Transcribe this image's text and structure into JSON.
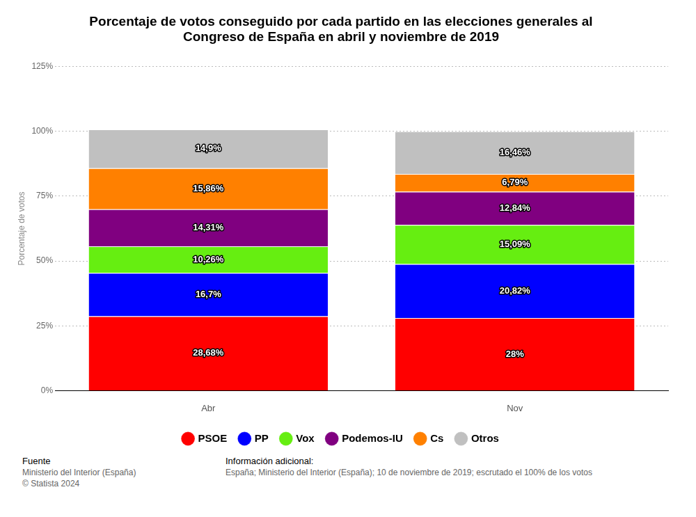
{
  "chart_data": {
    "type": "bar",
    "title": [
      "Porcentaje de votos conseguido por cada partido en las elecciones generales al",
      "Congreso de España en abril y noviembre de 2019"
    ],
    "y_label": "Porcentaje de votos",
    "categories": [
      "Abr",
      "Nov"
    ],
    "stacked": true,
    "data_labels": true,
    "grid": true,
    "legend": "bottom",
    "ylim": [
      0,
      125
    ],
    "yticks": [
      {
        "value": 0,
        "label": "0%"
      },
      {
        "value": 25,
        "label": "25%"
      },
      {
        "value": 50,
        "label": "50%"
      },
      {
        "value": 75,
        "label": "75%"
      },
      {
        "value": 100,
        "label": "100%"
      },
      {
        "value": 125,
        "label": "125%"
      }
    ],
    "series": [
      {
        "name": "PSOE",
        "color": "#ff0000",
        "values": [
          28.68,
          28
        ],
        "value_labels": [
          "28,68%",
          "28%"
        ]
      },
      {
        "name": "PP",
        "color": "#0000ff",
        "values": [
          16.7,
          20.82
        ],
        "value_labels": [
          "16,7%",
          "20,82%"
        ]
      },
      {
        "name": "Vox",
        "color": "#66ee11",
        "values": [
          10.26,
          15.09
        ],
        "value_labels": [
          "10,26%",
          "15,09%"
        ]
      },
      {
        "name": "Podemos-IU",
        "color": "#800080",
        "values": [
          14.31,
          12.84
        ],
        "value_labels": [
          "14,31%",
          "12,84%"
        ]
      },
      {
        "name": "Cs",
        "color": "#ff8000",
        "values": [
          15.86,
          6.79
        ],
        "value_labels": [
          "15,86%",
          "6,79%"
        ]
      },
      {
        "name": "Otros",
        "color": "#c0c0c0",
        "values": [
          14.9,
          16.46
        ],
        "value_labels": [
          "14,9%",
          "16,46%"
        ]
      }
    ]
  },
  "footer": {
    "source_title": "Fuente",
    "source": "Ministerio del Interior (España)",
    "copyright": "© Statista 2024",
    "info_title": "Información adicional:",
    "info": "España; Ministerio del Interior (España); 10 de noviembre de 2019; escrutado el 100% de los votos"
  }
}
